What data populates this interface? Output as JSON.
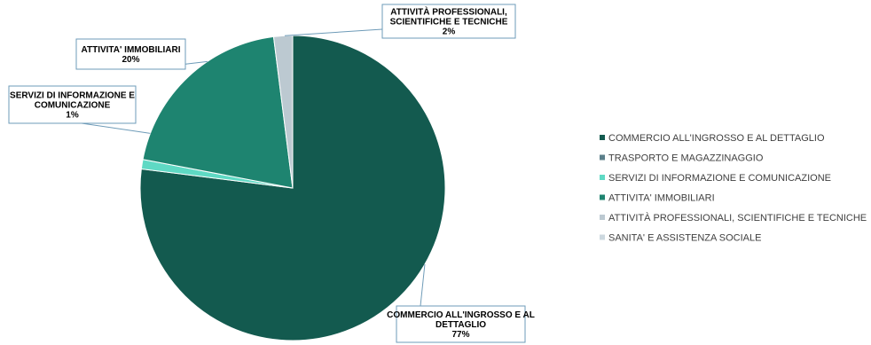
{
  "chart_data": {
    "type": "pie",
    "title": "",
    "slices": [
      {
        "name": "COMMERCIO ALL'INGROSSO E AL DETTAGLIO",
        "value": 77,
        "label": [
          "COMMERCIO ALL'INGROSSO E AL",
          "DETTAGLIO",
          "77%"
        ],
        "color": "#135A4F"
      },
      {
        "name": "TRASPORTO E MAGAZZINAGGIO",
        "value": 0,
        "label": null,
        "color": "#5B7F8A"
      },
      {
        "name": "SERVIZI DI INFORMAZIONE E COMUNICAZIONE",
        "value": 1,
        "label": [
          "SERVIZI DI INFORMAZIONE E",
          "COMUNICAZIONE",
          "1%"
        ],
        "color": "#5FD9C4"
      },
      {
        "name": "ATTIVITA' IMMOBILIARI",
        "value": 20,
        "label": [
          "ATTIVITA' IMMOBILIARI",
          "20%"
        ],
        "color": "#1E8470"
      },
      {
        "name": "ATTIVITÀ PROFESSIONALI, SCIENTIFICHE E TECNICHE",
        "value": 2,
        "label": [
          "ATTIVITÀ PROFESSIONALI,",
          "SCIENTIFICHE E TECNICHE",
          "2%"
        ],
        "color": "#BCC9D1"
      },
      {
        "name": "SANITA' E ASSISTENZA SOCIALE",
        "value": 0,
        "label": null,
        "color": "#CCD8DF"
      }
    ],
    "legend_position": "right"
  }
}
